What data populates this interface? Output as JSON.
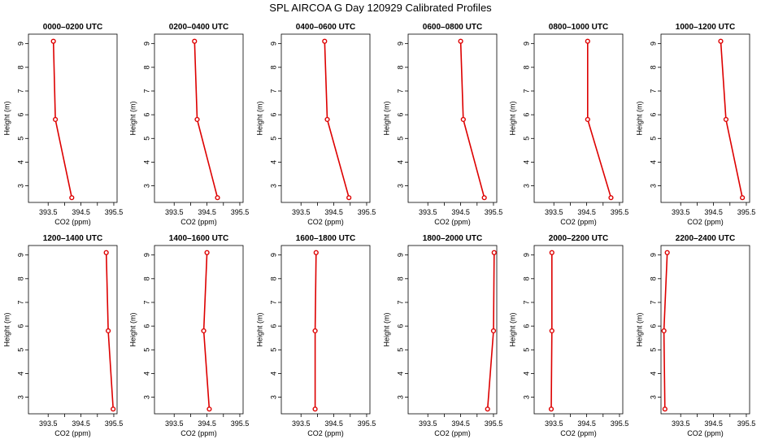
{
  "page_title": "SPL AIRCOA G  Day 120929  Calibrated Profiles",
  "colors": {
    "line": "#dd0000",
    "axis": "#000000"
  },
  "chart_data": [
    {
      "type": "line",
      "title": "0000–0200 UTC",
      "xlabel": "CO2 (ppm)",
      "ylabel": "Height (m)",
      "xlim": [
        392.9,
        395.6
      ],
      "ylim": [
        2.3,
        9.4
      ],
      "xticks": [
        "393.5",
        "394.5",
        "395.5"
      ],
      "yticks": [
        "3",
        "4",
        "5",
        "6",
        "7",
        "8",
        "9"
      ],
      "series": [
        {
          "x": [
            394.22,
            393.72,
            393.66
          ],
          "y": [
            2.5,
            5.8,
            9.1
          ]
        }
      ]
    },
    {
      "type": "line",
      "title": "0200–0400 UTC",
      "xlabel": "CO2 (ppm)",
      "ylabel": "Height (m)",
      "xlim": [
        392.9,
        395.6
      ],
      "ylim": [
        2.3,
        9.4
      ],
      "xticks": [
        "393.5",
        "394.5",
        "395.5"
      ],
      "yticks": [
        "3",
        "4",
        "5",
        "6",
        "7",
        "8",
        "9"
      ],
      "series": [
        {
          "x": [
            394.82,
            394.2,
            394.12
          ],
          "y": [
            2.5,
            5.8,
            9.1
          ]
        }
      ]
    },
    {
      "type": "line",
      "title": "0400–0600 UTC",
      "xlabel": "CO2 (ppm)",
      "ylabel": "Height (m)",
      "xlim": [
        392.9,
        395.6
      ],
      "ylim": [
        2.3,
        9.4
      ],
      "xticks": [
        "393.5",
        "394.5",
        "395.5"
      ],
      "yticks": [
        "3",
        "4",
        "5",
        "6",
        "7",
        "8",
        "9"
      ],
      "series": [
        {
          "x": [
            394.96,
            394.3,
            394.22
          ],
          "y": [
            2.5,
            5.8,
            9.1
          ]
        }
      ]
    },
    {
      "type": "line",
      "title": "0600–0800 UTC",
      "xlabel": "CO2 (ppm)",
      "ylabel": "Height (m)",
      "xlim": [
        392.9,
        395.6
      ],
      "ylim": [
        2.3,
        9.4
      ],
      "xticks": [
        "393.5",
        "394.5",
        "395.5"
      ],
      "yticks": [
        "3",
        "4",
        "5",
        "6",
        "7",
        "8",
        "9"
      ],
      "series": [
        {
          "x": [
            395.22,
            394.58,
            394.5
          ],
          "y": [
            2.5,
            5.8,
            9.1
          ]
        }
      ]
    },
    {
      "type": "line",
      "title": "0800–1000 UTC",
      "xlabel": "CO2 (ppm)",
      "ylabel": "Height (m)",
      "xlim": [
        392.9,
        395.6
      ],
      "ylim": [
        2.3,
        9.4
      ],
      "xticks": [
        "393.5",
        "394.5",
        "395.5"
      ],
      "yticks": [
        "3",
        "4",
        "5",
        "6",
        "7",
        "8",
        "9"
      ],
      "series": [
        {
          "x": [
            395.24,
            394.53,
            394.53
          ],
          "y": [
            2.5,
            5.8,
            9.1
          ]
        }
      ]
    },
    {
      "type": "line",
      "title": "1000–1200 UTC",
      "xlabel": "CO2 (ppm)",
      "ylabel": "Height (m)",
      "xlim": [
        392.9,
        395.6
      ],
      "ylim": [
        2.3,
        9.4
      ],
      "xticks": [
        "393.5",
        "394.5",
        "395.5"
      ],
      "yticks": [
        "3",
        "4",
        "5",
        "6",
        "7",
        "8",
        "9"
      ],
      "series": [
        {
          "x": [
            395.38,
            394.88,
            394.72
          ],
          "y": [
            2.5,
            5.8,
            9.1
          ]
        }
      ]
    },
    {
      "type": "line",
      "title": "1200–1400 UTC",
      "xlabel": "CO2 (ppm)",
      "ylabel": "Height (m)",
      "xlim": [
        392.9,
        395.6
      ],
      "ylim": [
        2.3,
        9.4
      ],
      "xticks": [
        "393.5",
        "394.5",
        "395.5"
      ],
      "yticks": [
        "3",
        "4",
        "5",
        "6",
        "7",
        "8",
        "9"
      ],
      "series": [
        {
          "x": [
            395.48,
            395.33,
            395.27
          ],
          "y": [
            2.5,
            5.8,
            9.1
          ]
        }
      ]
    },
    {
      "type": "line",
      "title": "1400–1600 UTC",
      "xlabel": "CO2 (ppm)",
      "ylabel": "Height (m)",
      "xlim": [
        392.9,
        395.6
      ],
      "ylim": [
        2.3,
        9.4
      ],
      "xticks": [
        "393.5",
        "394.5",
        "395.5"
      ],
      "yticks": [
        "3",
        "4",
        "5",
        "6",
        "7",
        "8",
        "9"
      ],
      "series": [
        {
          "x": [
            394.57,
            394.4,
            394.5
          ],
          "y": [
            2.5,
            5.8,
            9.1
          ]
        }
      ]
    },
    {
      "type": "line",
      "title": "1600–1800 UTC",
      "xlabel": "CO2 (ppm)",
      "ylabel": "Height (m)",
      "xlim": [
        392.9,
        395.6
      ],
      "ylim": [
        2.3,
        9.4
      ],
      "xticks": [
        "393.5",
        "394.5",
        "395.5"
      ],
      "yticks": [
        "3",
        "4",
        "5",
        "6",
        "7",
        "8",
        "9"
      ],
      "series": [
        {
          "x": [
            393.93,
            393.93,
            393.96
          ],
          "y": [
            2.5,
            5.8,
            9.1
          ]
        }
      ]
    },
    {
      "type": "line",
      "title": "1800–2000 UTC",
      "xlabel": "CO2 (ppm)",
      "ylabel": "Height (m)",
      "xlim": [
        392.9,
        395.6
      ],
      "ylim": [
        2.3,
        9.4
      ],
      "xticks": [
        "393.5",
        "394.5",
        "395.5"
      ],
      "yticks": [
        "3",
        "4",
        "5",
        "6",
        "7",
        "8",
        "9"
      ],
      "series": [
        {
          "x": [
            395.32,
            395.5,
            395.52
          ],
          "y": [
            2.5,
            5.8,
            9.1
          ]
        }
      ]
    },
    {
      "type": "line",
      "title": "2000–2200 UTC",
      "xlabel": "CO2 (ppm)",
      "ylabel": "Height (m)",
      "xlim": [
        392.9,
        395.6
      ],
      "ylim": [
        2.3,
        9.4
      ],
      "xticks": [
        "393.5",
        "394.5",
        "395.5"
      ],
      "yticks": [
        "3",
        "4",
        "5",
        "6",
        "7",
        "8",
        "9"
      ],
      "series": [
        {
          "x": [
            393.42,
            393.44,
            393.44
          ],
          "y": [
            2.5,
            5.8,
            9.1
          ]
        }
      ]
    },
    {
      "type": "line",
      "title": "2200–2400 UTC",
      "xlabel": "CO2 (ppm)",
      "ylabel": "Height (m)",
      "xlim": [
        392.9,
        395.6
      ],
      "ylim": [
        2.3,
        9.4
      ],
      "xticks": [
        "393.5",
        "394.5",
        "395.5"
      ],
      "yticks": [
        "3",
        "4",
        "5",
        "6",
        "7",
        "8",
        "9"
      ],
      "series": [
        {
          "x": [
            393.02,
            392.99,
            393.09
          ],
          "y": [
            2.5,
            5.8,
            9.1
          ]
        }
      ]
    }
  ]
}
